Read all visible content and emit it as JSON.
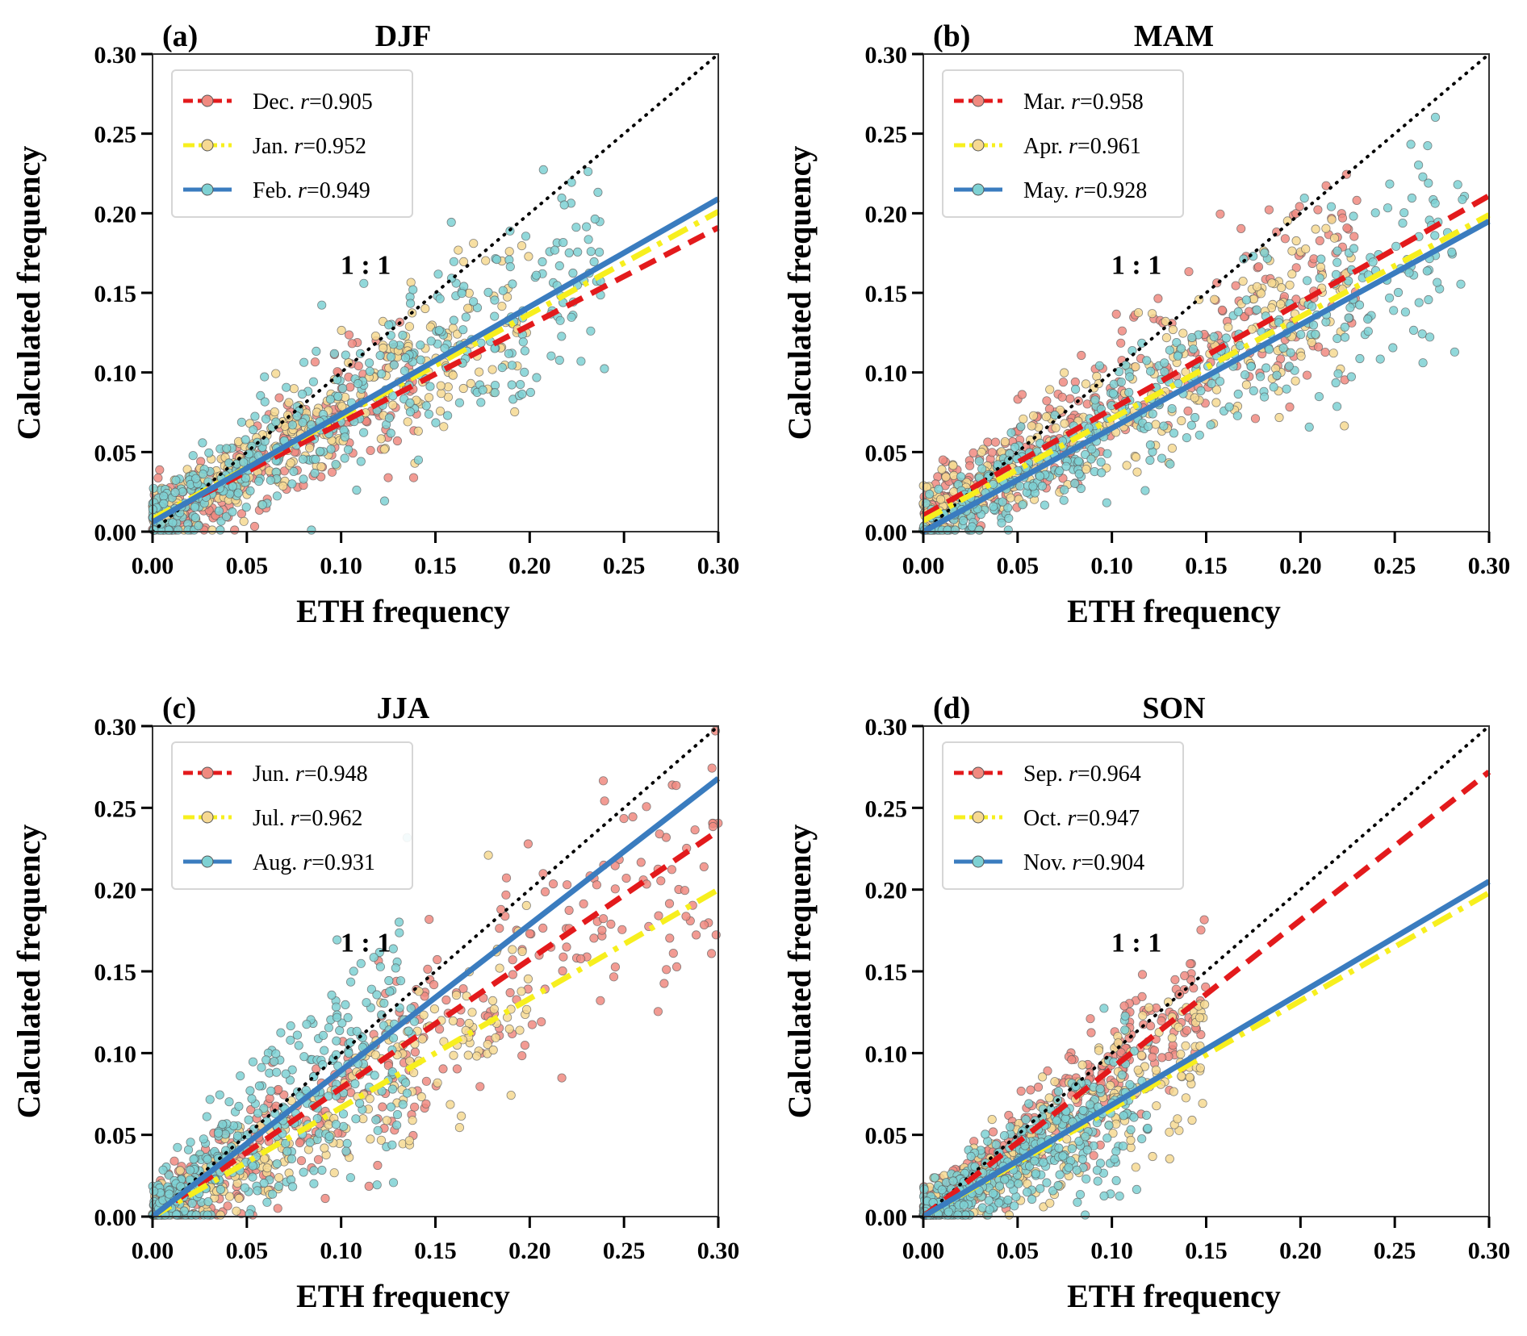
{
  "chart_data": [
    {
      "type": "scatter",
      "panel_label": "(a)",
      "title": "DJF",
      "xlabel": "ETH frequency",
      "ylabel": "Calculated frequency",
      "xlim": [
        0,
        0.3
      ],
      "ylim": [
        0,
        0.3
      ],
      "xticks": [
        "0.00",
        "0.05",
        "0.10",
        "0.15",
        "0.20",
        "0.25",
        "0.30"
      ],
      "yticks": [
        "0.00",
        "0.05",
        "0.10",
        "0.15",
        "0.20",
        "0.25",
        "0.30"
      ],
      "reference_line": {
        "label": "1 : 1",
        "x": [
          0,
          0.3
        ],
        "y": [
          0,
          0.3
        ],
        "label_at": [
          0.113,
          0.162
        ]
      },
      "legend_placement": "top-left",
      "series": [
        {
          "name": "Dec.",
          "r": "0.905",
          "r_text": "r=0.905",
          "line_style": "dashed",
          "line_color": "#e31a1c",
          "marker_color": "#f08a80",
          "fit": {
            "x": [
              0,
              0.3
            ],
            "y": [
              0.007,
              0.191
            ]
          },
          "cloud": {
            "xmax": 0.14,
            "spread": 0.022,
            "slope": 0.62,
            "count": 260
          }
        },
        {
          "name": "Jan.",
          "r": "0.952",
          "r_text": "r=0.952",
          "line_style": "dashdot",
          "line_color": "#f7ef1e",
          "marker_color": "#f6d992",
          "fit": {
            "x": [
              0,
              0.3
            ],
            "y": [
              0.008,
              0.201
            ]
          },
          "cloud": {
            "xmax": 0.2,
            "spread": 0.022,
            "slope": 0.66,
            "count": 320
          }
        },
        {
          "name": "Feb.",
          "r": "0.949",
          "r_text": "r=0.949",
          "line_style": "solid",
          "line_color": "#3a7cbf",
          "marker_color": "#7ed1d3",
          "fit": {
            "x": [
              0,
              0.3
            ],
            "y": [
              0.006,
              0.209
            ]
          },
          "cloud": {
            "xmax": 0.24,
            "spread": 0.03,
            "slope": 0.7,
            "count": 420
          }
        }
      ]
    },
    {
      "type": "scatter",
      "panel_label": "(b)",
      "title": "MAM",
      "xlabel": "ETH frequency",
      "ylabel": "Calculated frequency",
      "xlim": [
        0,
        0.3
      ],
      "ylim": [
        0,
        0.3
      ],
      "xticks": [
        "0.00",
        "0.05",
        "0.10",
        "0.15",
        "0.20",
        "0.25",
        "0.30"
      ],
      "yticks": [
        "0.00",
        "0.05",
        "0.10",
        "0.15",
        "0.20",
        "0.25",
        "0.30"
      ],
      "reference_line": {
        "label": "1 : 1",
        "x": [
          0,
          0.3
        ],
        "y": [
          0,
          0.3
        ],
        "label_at": [
          0.113,
          0.162
        ]
      },
      "legend_placement": "top-left",
      "series": [
        {
          "name": "Mar.",
          "r": "0.958",
          "r_text": "r=0.958",
          "line_style": "dashed",
          "line_color": "#e31a1c",
          "marker_color": "#f08a80",
          "fit": {
            "x": [
              0,
              0.3
            ],
            "y": [
              0.01,
              0.211
            ]
          },
          "cloud": {
            "xmax": 0.23,
            "spread": 0.028,
            "slope": 0.72,
            "count": 330
          }
        },
        {
          "name": "Apr.",
          "r": "0.961",
          "r_text": "r=0.961",
          "line_style": "dashdot",
          "line_color": "#f7ef1e",
          "marker_color": "#f6d992",
          "fit": {
            "x": [
              0,
              0.3
            ],
            "y": [
              0.007,
              0.199
            ]
          },
          "cloud": {
            "xmax": 0.23,
            "spread": 0.025,
            "slope": 0.65,
            "count": 320
          }
        },
        {
          "name": "May.",
          "r": "0.928",
          "r_text": "r=0.928",
          "line_style": "solid",
          "line_color": "#3a7cbf",
          "marker_color": "#7ed1d3",
          "fit": {
            "x": [
              0,
              0.3
            ],
            "y": [
              0.0,
              0.195
            ]
          },
          "cloud": {
            "xmax": 0.29,
            "spread": 0.028,
            "slope": 0.65,
            "count": 440
          }
        }
      ]
    },
    {
      "type": "scatter",
      "panel_label": "(c)",
      "title": "JJA",
      "xlabel": "ETH frequency",
      "ylabel": "Calculated frequency",
      "xlim": [
        0,
        0.3
      ],
      "ylim": [
        0,
        0.3
      ],
      "xticks": [
        "0.00",
        "0.05",
        "0.10",
        "0.15",
        "0.20",
        "0.25",
        "0.30"
      ],
      "yticks": [
        "0.00",
        "0.05",
        "0.10",
        "0.15",
        "0.20",
        "0.25",
        "0.30"
      ],
      "reference_line": {
        "label": "1 : 1",
        "x": [
          0,
          0.3
        ],
        "y": [
          0,
          0.3
        ],
        "label_at": [
          0.113,
          0.162
        ]
      },
      "legend_placement": "top-left",
      "series": [
        {
          "name": "Jun.",
          "r": "0.948",
          "r_text": "r=0.948",
          "line_style": "dashed",
          "line_color": "#e31a1c",
          "marker_color": "#f08a80",
          "fit": {
            "x": [
              0,
              0.3
            ],
            "y": [
              0.0,
              0.236
            ]
          },
          "cloud": {
            "xmax": 0.3,
            "spread": 0.035,
            "slope": 0.78,
            "count": 330
          }
        },
        {
          "name": "Jul.",
          "r": "0.962",
          "r_text": "r=0.962",
          "line_style": "dashdot",
          "line_color": "#f7ef1e",
          "marker_color": "#f6d992",
          "fit": {
            "x": [
              0,
              0.3
            ],
            "y": [
              0.0,
              0.2
            ]
          },
          "cloud": {
            "xmax": 0.2,
            "spread": 0.022,
            "slope": 0.66,
            "count": 260
          }
        },
        {
          "name": "Aug.",
          "r": "0.931",
          "r_text": "r=0.931",
          "line_style": "solid",
          "line_color": "#3a7cbf",
          "marker_color": "#7ed1d3",
          "fit": {
            "x": [
              0,
              0.3
            ],
            "y": [
              0.0,
              0.268
            ]
          },
          "cloud": {
            "xmax": 0.14,
            "spread": 0.03,
            "slope": 0.9,
            "count": 380
          }
        }
      ]
    },
    {
      "type": "scatter",
      "panel_label": "(d)",
      "title": "SON",
      "xlabel": "ETH frequency",
      "ylabel": "Calculated frequency",
      "xlim": [
        0,
        0.3
      ],
      "ylim": [
        0,
        0.3
      ],
      "xticks": [
        "0.00",
        "0.05",
        "0.10",
        "0.15",
        "0.20",
        "0.25",
        "0.30"
      ],
      "yticks": [
        "0.00",
        "0.05",
        "0.10",
        "0.15",
        "0.20",
        "0.25",
        "0.30"
      ],
      "reference_line": {
        "label": "1 : 1",
        "x": [
          0,
          0.3
        ],
        "y": [
          0,
          0.3
        ],
        "label_at": [
          0.113,
          0.162
        ]
      },
      "legend_placement": "top-left",
      "series": [
        {
          "name": "Sep.",
          "r": "0.964",
          "r_text": "r=0.964",
          "line_style": "dashed",
          "line_color": "#e31a1c",
          "marker_color": "#f08a80",
          "fit": {
            "x": [
              0,
              0.3
            ],
            "y": [
              0.0,
              0.272
            ]
          },
          "cloud": {
            "xmax": 0.15,
            "spread": 0.018,
            "slope": 0.92,
            "count": 330
          }
        },
        {
          "name": "Oct.",
          "r": "0.947",
          "r_text": "r=0.947",
          "line_style": "dashdot",
          "line_color": "#f7ef1e",
          "marker_color": "#f6d992",
          "fit": {
            "x": [
              0,
              0.3
            ],
            "y": [
              0.0,
              0.198
            ]
          },
          "cloud": {
            "xmax": 0.15,
            "spread": 0.02,
            "slope": 0.7,
            "count": 320
          }
        },
        {
          "name": "Nov.",
          "r": "0.904",
          "r_text": "r=0.904",
          "line_style": "solid",
          "line_color": "#3a7cbf",
          "marker_color": "#7ed1d3",
          "fit": {
            "x": [
              0,
              0.3
            ],
            "y": [
              0.0,
              0.205
            ]
          },
          "cloud": {
            "xmax": 0.12,
            "spread": 0.02,
            "slope": 0.68,
            "count": 420
          }
        }
      ]
    }
  ]
}
